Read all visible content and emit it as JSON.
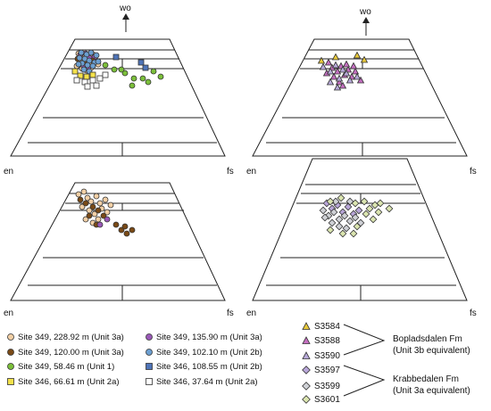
{
  "chart_data": [
    {
      "type": "scatter",
      "panel": "top-left",
      "axis_labels": {
        "top": "wo",
        "left": "en",
        "right": "fs"
      },
      "groups": [
        {
          "name": "Site 349, 228.92 m (Unit 3a)",
          "points": [
            [
              88,
              60
            ],
            [
              92,
              62
            ],
            [
              95,
              64
            ],
            [
              98,
              66
            ],
            [
              101,
              63
            ],
            [
              104,
              61
            ],
            [
              90,
              68
            ],
            [
              94,
              70
            ],
            [
              99,
              72
            ],
            [
              103,
              70
            ],
            [
              107,
              67
            ],
            [
              86,
              74
            ],
            [
              92,
              77
            ],
            [
              97,
              79
            ],
            [
              102,
              76
            ],
            [
              110,
              72
            ]
          ]
        },
        {
          "name": "Site 349, 135.90 m (Unit 3a)",
          "points": [
            [
              90,
              61
            ],
            [
              96,
              60
            ],
            [
              100,
              65
            ],
            [
              106,
              64
            ],
            [
              93,
              73
            ],
            [
              99,
              75
            ]
          ]
        },
        {
          "name": "Site 349, 120.00 m (Unit 3a)",
          "points": [
            [
              87,
              66
            ],
            [
              95,
              68
            ],
            [
              104,
              68
            ]
          ]
        },
        {
          "name": "Site 349, 102.10 m (Unit 2b)",
          "points": [
            [
              91,
              59
            ],
            [
              97,
              61
            ],
            [
              102,
              59
            ],
            [
              108,
              62
            ],
            [
              89,
              65
            ],
            [
              95,
              66
            ],
            [
              100,
              68
            ],
            [
              106,
              70
            ],
            [
              92,
              71
            ],
            [
              98,
              73
            ],
            [
              104,
              74
            ],
            [
              110,
              69
            ],
            [
              94,
              78
            ],
            [
              100,
              80
            ],
            [
              88,
              72
            ]
          ]
        },
        {
          "name": "Site 349, 58.46 m (Unit 1)",
          "points": [
            [
              118,
              73
            ],
            [
              128,
              78
            ],
            [
              140,
              82
            ],
            [
              150,
              88
            ],
            [
              148,
              96
            ],
            [
              160,
              88
            ],
            [
              172,
              80
            ],
            [
              180,
              86
            ],
            [
              166,
              92
            ],
            [
              136,
              78
            ]
          ]
        },
        {
          "name": "Site 346, 108.55 m (Unit 2b)",
          "points": [
            [
              130,
              64
            ],
            [
              158,
              70
            ],
            [
              163,
              76
            ]
          ]
        },
        {
          "name": "Site 346, 66.61 m (Unit 2a)",
          "points": [
            [
              84,
              80
            ],
            [
              90,
              85
            ],
            [
              97,
              86
            ],
            [
              104,
              84
            ]
          ]
        },
        {
          "name": "Site 346, 37.64 m (Unit 2a)",
          "points": [
            [
              86,
              90
            ],
            [
              95,
              92
            ],
            [
              104,
              90
            ],
            [
              112,
              88
            ],
            [
              118,
              84
            ],
            [
              98,
              97
            ],
            [
              108,
              96
            ]
          ]
        }
      ]
    },
    {
      "type": "scatter",
      "panel": "top-right",
      "axis_labels": {
        "top": "wo",
        "left": "en",
        "right": "fs"
      },
      "groups": [
        {
          "name": "S3584",
          "points": [
            [
              360,
              68
            ],
            [
              376,
              64
            ],
            [
              400,
              62
            ],
            [
              408,
              67
            ]
          ]
        },
        {
          "name": "S3588",
          "points": [
            [
              368,
              70
            ],
            [
              372,
              76
            ],
            [
              378,
              80
            ],
            [
              382,
              74
            ],
            [
              386,
              84
            ],
            [
              390,
              78
            ],
            [
              394,
              86
            ],
            [
              398,
              80
            ],
            [
              404,
              90
            ],
            [
              380,
              92
            ],
            [
              374,
              86
            ],
            [
              366,
              82
            ],
            [
              388,
              72
            ],
            [
              396,
              74
            ],
            [
              384,
              96
            ]
          ]
        },
        {
          "name": "S3590",
          "points": [
            [
              362,
              75
            ],
            [
              370,
              80
            ],
            [
              376,
              73
            ],
            [
              380,
              88
            ],
            [
              388,
              82
            ],
            [
              392,
              90
            ],
            [
              400,
              86
            ],
            [
              378,
              98
            ],
            [
              370,
              92
            ],
            [
              384,
              78
            ]
          ]
        }
      ]
    },
    {
      "type": "scatter",
      "panel": "bottom-left",
      "axis_labels": {
        "left": "en",
        "right": "fs"
      },
      "groups": [
        {
          "name": "Site 349, 228.92 m (Unit 3a)",
          "points": [
            [
              88,
              218
            ],
            [
              94,
              215
            ],
            [
              98,
              222
            ],
            [
              102,
              226
            ],
            [
              108,
              220
            ],
            [
              112,
              228
            ],
            [
              118,
              224
            ],
            [
              92,
              232
            ],
            [
              100,
              236
            ],
            [
              106,
              240
            ],
            [
              114,
              234
            ],
            [
              120,
              238
            ],
            [
              96,
              246
            ],
            [
              104,
              250
            ],
            [
              110,
              246
            ],
            [
              124,
              230
            ]
          ]
        },
        {
          "name": "Site 349, 120.00 m (Unit 3a)",
          "points": [
            [
              90,
              224
            ],
            [
              96,
              228
            ],
            [
              104,
              232
            ],
            [
              110,
              236
            ],
            [
              116,
              242
            ],
            [
              100,
              242
            ],
            [
              108,
              252
            ],
            [
              130,
              252
            ],
            [
              136,
              258
            ],
            [
              142,
              262
            ],
            [
              148,
              258
            ],
            [
              140,
              254
            ]
          ]
        },
        {
          "name": "Site 349, 135.90 m (Unit 3a)",
          "points": [
            [
              120,
              246
            ],
            [
              112,
              252
            ]
          ]
        }
      ]
    },
    {
      "type": "scatter",
      "panel": "bottom-right",
      "axis_labels": {
        "left": "en",
        "right": "fs"
      },
      "groups": [
        {
          "name": "S3597",
          "points": [
            [
              366,
              228
            ],
            [
              372,
              234
            ],
            [
              378,
              230
            ],
            [
              384,
              238
            ],
            [
              390,
              232
            ],
            [
              396,
              240
            ],
            [
              402,
              236
            ]
          ]
        },
        {
          "name": "S3599",
          "points": [
            [
              362,
              236
            ],
            [
              368,
              242
            ],
            [
              374,
              238
            ],
            [
              380,
              246
            ],
            [
              386,
              242
            ],
            [
              392,
              248
            ],
            [
              398,
              244
            ],
            [
              404,
              250
            ],
            [
              372,
              250
            ],
            [
              380,
              254
            ],
            [
              388,
              256
            ],
            [
              364,
              244
            ],
            [
              376,
              226
            ],
            [
              392,
              226
            ]
          ]
        },
        {
          "name": "S3601",
          "points": [
            [
              370,
              226
            ],
            [
              382,
              222
            ],
            [
              398,
              228
            ],
            [
              408,
              226
            ],
            [
              414,
              234
            ],
            [
              420,
              230
            ],
            [
              426,
              228
            ],
            [
              410,
              240
            ],
            [
              418,
              246
            ],
            [
              436,
              234
            ],
            [
              400,
              254
            ],
            [
              384,
              262
            ],
            [
              370,
              258
            ],
            [
              396,
              262
            ],
            [
              424,
              238
            ]
          ]
        }
      ]
    }
  ],
  "legend_left": [
    {
      "label": "Site 349, 228.92 m (Unit 3a)",
      "marker": "circle",
      "color": "#f2cfa5"
    },
    {
      "label": "Site 349, 135.90 m (Unit 3a)",
      "marker": "circle",
      "color": "#9a59b8"
    },
    {
      "label": "Site 349, 120.00 m (Unit 3a)",
      "marker": "circle",
      "color": "#7a4a16"
    },
    {
      "label": "Site 349, 102.10 m (Unit 2b)",
      "marker": "circle",
      "color": "#6c9fd1"
    },
    {
      "label": "Site 349, 58.46 m (Unit 1)",
      "marker": "circle",
      "color": "#7bbf3a"
    },
    {
      "label": "Site 346, 108.55 m (Unit 2b)",
      "marker": "square",
      "color": "#4f74b8"
    },
    {
      "label": "Site 346, 66.61 m (Unit 2a)",
      "marker": "square",
      "color": "#f4e14a"
    },
    {
      "label": "Site 346, 37.64 m (Unit 2a)",
      "marker": "square",
      "color": "#ffffff"
    }
  ],
  "legend_right": [
    {
      "label": "S3584",
      "marker": "triangle",
      "color": "#e8c93a"
    },
    {
      "label": "S3588",
      "marker": "triangle",
      "color": "#c46fc0"
    },
    {
      "label": "S3590",
      "marker": "triangle",
      "color": "#b7a9d9"
    },
    {
      "label": "S3597",
      "marker": "diamond",
      "color": "#b8a6d8"
    },
    {
      "label": "S3599",
      "marker": "diamond",
      "color": "#cfd1d6"
    },
    {
      "label": "S3601",
      "marker": "diamond",
      "color": "#dbe5b0"
    }
  ],
  "groups_text": {
    "boplads_line1": "Bopladsdalen Fm",
    "boplads_line2": "(Unit 3b equivalent)",
    "krabbe_line1": "Krabbedalen Fm",
    "krabbe_line2": "(Unit 3a equivalent)"
  },
  "colors": {
    "site349_228": "#f2cfa5",
    "site349_135": "#9a59b8",
    "site349_120": "#7a4a16",
    "site349_102": "#6c9fd1",
    "site349_58": "#7bbf3a",
    "site346_108": "#4f74b8",
    "site346_66": "#f4e14a",
    "site346_37": "#ffffff",
    "s3584": "#e8c93a",
    "s3588": "#c46fc0",
    "s3590": "#b7a9d9",
    "s3597": "#b8a6d8",
    "s3599": "#cfd1d6",
    "s3601": "#dbe5b0"
  }
}
